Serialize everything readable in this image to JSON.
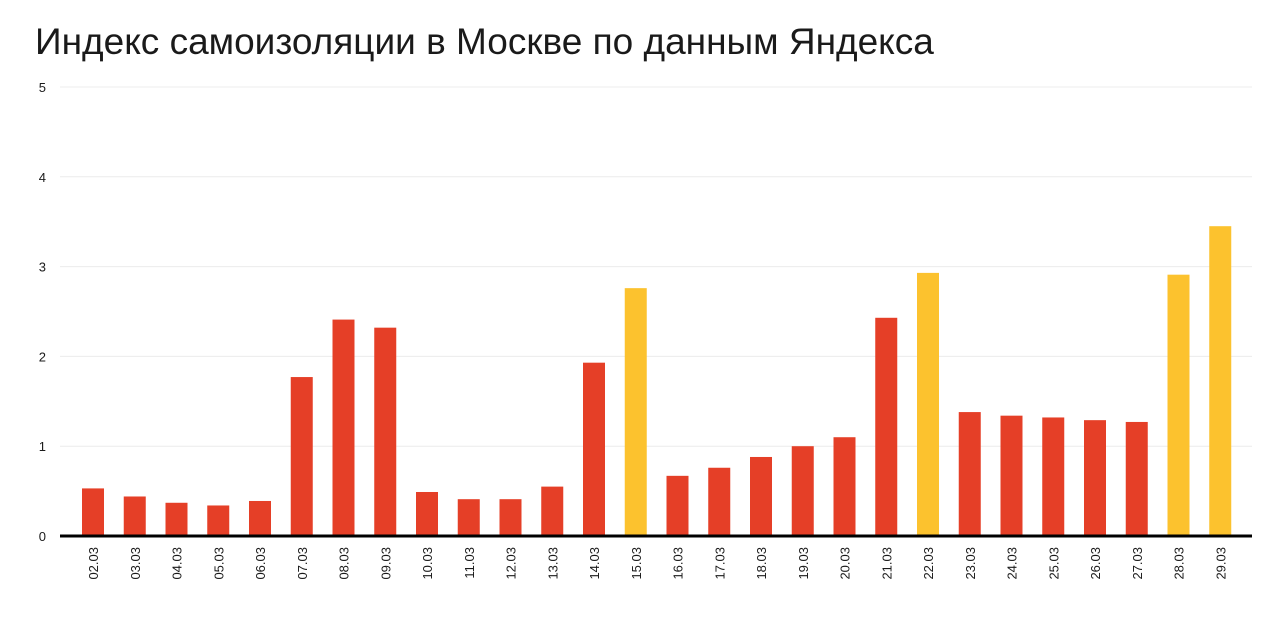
{
  "chart_data": {
    "type": "bar",
    "title": "Индекс самоизоляции в Москве по данным Яндекса",
    "xlabel": "",
    "ylabel": "",
    "ylim": [
      0,
      5
    ],
    "yticks": [
      "0",
      "1",
      "2",
      "3",
      "4",
      "5"
    ],
    "grid": true,
    "legend": "none",
    "categories": [
      "02.03",
      "03.03",
      "04.03",
      "05.03",
      "06.03",
      "07.03",
      "08.03",
      "09.03",
      "10.03",
      "11.03",
      "12.03",
      "13.03",
      "14.03",
      "15.03",
      "16.03",
      "17.03",
      "18.03",
      "19.03",
      "20.03",
      "21.03",
      "22.03",
      "23.03",
      "24.03",
      "25.03",
      "26.03",
      "27.03",
      "28.03",
      "29.03"
    ],
    "values": [
      0.53,
      0.44,
      0.37,
      0.34,
      0.39,
      1.77,
      2.41,
      2.32,
      0.49,
      0.41,
      0.41,
      0.55,
      1.93,
      2.76,
      0.67,
      0.76,
      0.88,
      1.0,
      1.1,
      2.43,
      2.93,
      1.38,
      1.34,
      1.32,
      1.29,
      1.27,
      2.91,
      3.45
    ],
    "highlight": [
      false,
      false,
      false,
      false,
      false,
      false,
      false,
      false,
      false,
      false,
      false,
      false,
      false,
      true,
      false,
      false,
      false,
      false,
      false,
      false,
      true,
      false,
      false,
      false,
      false,
      false,
      true,
      true
    ],
    "colors": {
      "bar": "#e53f27",
      "highlight": "#fcc22e",
      "axis": "#000000",
      "grid": "#ececec"
    }
  }
}
